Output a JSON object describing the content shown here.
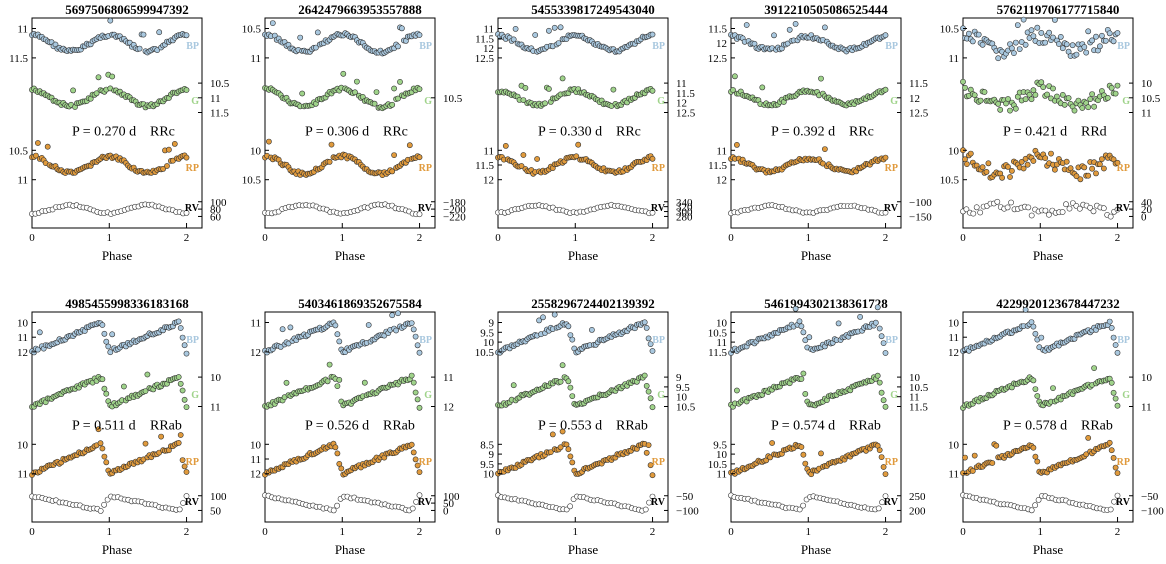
{
  "x_label": "Phase",
  "colors": {
    "BP": "#a9c8df",
    "G": "#9fd38a",
    "RP": "#e09a3c",
    "RV": "#ffffff",
    "stroke": "#333333"
  },
  "chart_data": [
    {
      "type": "scatter",
      "title": "5697506806599947392",
      "period_label": "P = 0.270 d",
      "class_label": "RRc",
      "shape": "sine",
      "amp": 0.55,
      "xlim": [
        0,
        2.2
      ],
      "xticks": [
        "0",
        "1",
        "2"
      ],
      "series": [
        {
          "name": "BP",
          "left_ticks": [
            "11",
            "11.5"
          ],
          "right_ticks": []
        },
        {
          "name": "G",
          "left_ticks": [],
          "right_ticks": [
            "10.5",
            "11",
            "11.5"
          ]
        },
        {
          "name": "RP",
          "left_ticks": [
            "10.5",
            "11"
          ],
          "right_ticks": []
        },
        {
          "name": "RV",
          "left_ticks": [],
          "right_ticks": [
            "100",
            "80",
            "60"
          ]
        }
      ]
    },
    {
      "type": "scatter",
      "title": "2642479663953557888",
      "period_label": "P = 0.306 d",
      "class_label": "RRc",
      "shape": "sine",
      "amp": 0.6,
      "xlim": [
        0,
        2.2
      ],
      "xticks": [
        "0",
        "1",
        "2"
      ],
      "series": [
        {
          "name": "BP",
          "left_ticks": [
            "10.5",
            "11"
          ],
          "right_ticks": []
        },
        {
          "name": "G",
          "left_ticks": [],
          "right_ticks": [
            "10.5"
          ]
        },
        {
          "name": "RP",
          "left_ticks": [
            "10",
            "10.5"
          ],
          "right_ticks": []
        },
        {
          "name": "RV",
          "left_ticks": [],
          "right_ticks": [
            "−180",
            "−200",
            "−220"
          ]
        }
      ]
    },
    {
      "type": "scatter",
      "title": "5455339817249543040",
      "period_label": "P = 0.330 d",
      "class_label": "RRc",
      "shape": "sine",
      "amp": 0.5,
      "xlim": [
        0,
        2.2
      ],
      "xticks": [
        "0",
        "1",
        "2"
      ],
      "series": [
        {
          "name": "BP",
          "left_ticks": [
            "11",
            "11.5",
            "12",
            "12.5"
          ],
          "right_ticks": []
        },
        {
          "name": "G",
          "left_ticks": [],
          "right_ticks": [
            "11",
            "11.5",
            "12",
            "12.5"
          ]
        },
        {
          "name": "RP",
          "left_ticks": [
            "11",
            "11.5",
            "12"
          ],
          "right_ticks": []
        },
        {
          "name": "RV",
          "left_ticks": [],
          "right_ticks": [
            "340",
            "320",
            "300",
            "280"
          ]
        }
      ]
    },
    {
      "type": "scatter",
      "title": "3912210505086525444",
      "period_label": "P = 0.392 d",
      "class_label": "RRc",
      "shape": "sine",
      "amp": 0.45,
      "xlim": [
        0,
        2.2
      ],
      "xticks": [
        "0",
        "1",
        "2"
      ],
      "series": [
        {
          "name": "BP",
          "left_ticks": [
            "11.5",
            "12",
            "12.5"
          ],
          "right_ticks": []
        },
        {
          "name": "G",
          "left_ticks": [],
          "right_ticks": [
            "11.5",
            "12",
            "12.5"
          ]
        },
        {
          "name": "RP",
          "left_ticks": [
            "11",
            "11.5",
            "12"
          ],
          "right_ticks": []
        },
        {
          "name": "RV",
          "left_ticks": [],
          "right_ticks": [
            "−100",
            "−150"
          ]
        }
      ]
    },
    {
      "type": "scatter",
      "title": "5762119706177715840",
      "period_label": "P = 0.421 d",
      "class_label": "RRd",
      "shape": "noisy",
      "amp": 0.55,
      "xlim": [
        0,
        2.2
      ],
      "xticks": [
        "0",
        "1",
        "2"
      ],
      "series": [
        {
          "name": "BP",
          "left_ticks": [
            "10.5",
            "11"
          ],
          "right_ticks": []
        },
        {
          "name": "G",
          "left_ticks": [],
          "right_ticks": [
            "10",
            "10.5",
            "11"
          ]
        },
        {
          "name": "RP",
          "left_ticks": [
            "10",
            "10.5"
          ],
          "right_ticks": []
        },
        {
          "name": "RV",
          "left_ticks": [],
          "right_ticks": [
            "40",
            "20",
            "0"
          ]
        }
      ]
    },
    {
      "type": "scatter",
      "title": "4985455998336183168",
      "period_label": "P = 0.511 d",
      "class_label": "RRab",
      "shape": "saw",
      "amp": 1.0,
      "xlim": [
        0,
        2.2
      ],
      "xticks": [
        "0",
        "1",
        "2"
      ],
      "series": [
        {
          "name": "BP",
          "left_ticks": [
            "10",
            "11",
            "12"
          ],
          "right_ticks": []
        },
        {
          "name": "G",
          "left_ticks": [],
          "right_ticks": [
            "10",
            "11"
          ]
        },
        {
          "name": "RP",
          "left_ticks": [
            "10",
            "11"
          ],
          "right_ticks": []
        },
        {
          "name": "RV",
          "left_ticks": [],
          "right_ticks": [
            "100",
            "50"
          ]
        }
      ]
    },
    {
      "type": "scatter",
      "title": "5403461869352675584",
      "period_label": "P = 0.526 d",
      "class_label": "RRab",
      "shape": "saw",
      "amp": 1.0,
      "xlim": [
        0,
        2.2
      ],
      "xticks": [
        "0",
        "1",
        "2"
      ],
      "series": [
        {
          "name": "BP",
          "left_ticks": [
            "11",
            "12"
          ],
          "right_ticks": []
        },
        {
          "name": "G",
          "left_ticks": [],
          "right_ticks": [
            "11",
            "12"
          ]
        },
        {
          "name": "RP",
          "left_ticks": [
            "10",
            "11",
            "12"
          ],
          "right_ticks": []
        },
        {
          "name": "RV",
          "left_ticks": [],
          "right_ticks": [
            "100",
            "50",
            "0"
          ]
        }
      ]
    },
    {
      "type": "scatter",
      "title": "2558296724402139392",
      "period_label": "P = 0.553 d",
      "class_label": "RRab",
      "shape": "saw",
      "amp": 1.0,
      "xlim": [
        0,
        2.2
      ],
      "xticks": [
        "0",
        "1",
        "2"
      ],
      "series": [
        {
          "name": "BP",
          "left_ticks": [
            "9",
            "9.5",
            "10",
            "10.5"
          ],
          "right_ticks": []
        },
        {
          "name": "G",
          "left_ticks": [],
          "right_ticks": [
            "9",
            "9.5",
            "10",
            "10.5"
          ]
        },
        {
          "name": "RP",
          "left_ticks": [
            "8.5",
            "9",
            "9.5",
            "10"
          ],
          "right_ticks": []
        },
        {
          "name": "RV",
          "left_ticks": [],
          "right_ticks": [
            "−50",
            "−100"
          ]
        }
      ]
    },
    {
      "type": "scatter",
      "title": "5461994302138361728",
      "period_label": "P = 0.574 d",
      "class_label": "RRab",
      "shape": "saw",
      "amp": 1.0,
      "xlim": [
        0,
        2.2
      ],
      "xticks": [
        "0",
        "1",
        "2"
      ],
      "series": [
        {
          "name": "BP",
          "left_ticks": [
            "10",
            "10.5",
            "11",
            "11.5"
          ],
          "right_ticks": []
        },
        {
          "name": "G",
          "left_ticks": [],
          "right_ticks": [
            "10",
            "10.5",
            "11",
            "11.5"
          ]
        },
        {
          "name": "RP",
          "left_ticks": [
            "9.5",
            "10",
            "10.5",
            "11"
          ],
          "right_ticks": []
        },
        {
          "name": "RV",
          "left_ticks": [],
          "right_ticks": [
            "250",
            "200"
          ]
        }
      ]
    },
    {
      "type": "scatter",
      "title": "4229920123678447232",
      "period_label": "P = 0.578 d",
      "class_label": "RRab",
      "shape": "saw",
      "amp": 1.0,
      "xlim": [
        0,
        2.2
      ],
      "xticks": [
        "0",
        "1",
        "2"
      ],
      "series": [
        {
          "name": "BP",
          "left_ticks": [
            "10",
            "11",
            "12"
          ],
          "right_ticks": []
        },
        {
          "name": "G",
          "left_ticks": [],
          "right_ticks": [
            "10",
            "11"
          ]
        },
        {
          "name": "RP",
          "left_ticks": [
            "10",
            "11"
          ],
          "right_ticks": []
        },
        {
          "name": "RV",
          "left_ticks": [],
          "right_ticks": [
            "−50",
            "−100"
          ]
        }
      ]
    }
  ]
}
